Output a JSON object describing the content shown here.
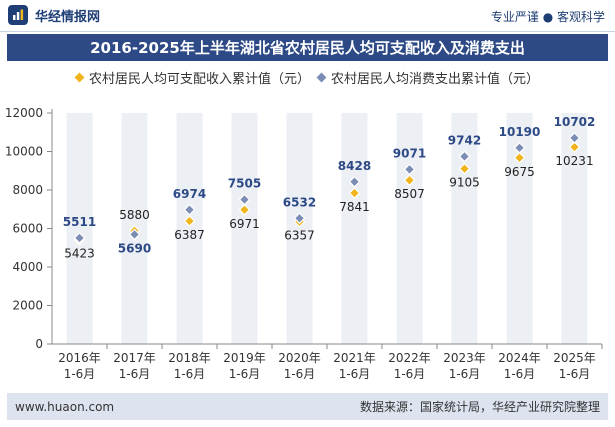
{
  "brand": {
    "name": "华经情报网",
    "tagline": "专业严谨 ● 客观科学"
  },
  "title": "2016-2025年上半年湖北省农村居民人均可支配收入及消费支出",
  "colors": {
    "income": "#f0b51e",
    "spend": "#7c8db5",
    "title_bg": "#2d4a86",
    "grid_col": "#eceff4"
  },
  "chart_data": {
    "type": "line",
    "categories": [
      "2016年\n1-6月",
      "2017年\n1-6月",
      "2018年\n1-6月",
      "2019年\n1-6月",
      "2020年\n1-6月",
      "2021年\n1-6月",
      "2022年\n1-6月",
      "2023年\n1-6月",
      "2024年\n1-6月",
      "2025年\n1-6月"
    ],
    "series": [
      {
        "name": "农村居民人均可支配收入累计值（元）",
        "values": [
          5423,
          5880,
          6387,
          6971,
          6357,
          7841,
          8507,
          9105,
          9675,
          10231
        ]
      },
      {
        "name": "农村居民人均消费支出累计值（元）",
        "values": [
          5511,
          5690,
          6974,
          7505,
          6532,
          8428,
          9071,
          9742,
          10190,
          10702
        ]
      }
    ],
    "yticks": [
      0,
      2000,
      4000,
      6000,
      8000,
      10000,
      12000
    ],
    "ylim": [
      0,
      12000
    ],
    "markers": "diamond",
    "lines_visible": false,
    "legend_position": "top"
  },
  "footer": {
    "website": "www.huaon.com",
    "source": "数据来源：国家统计局，华经产业研究院整理"
  }
}
